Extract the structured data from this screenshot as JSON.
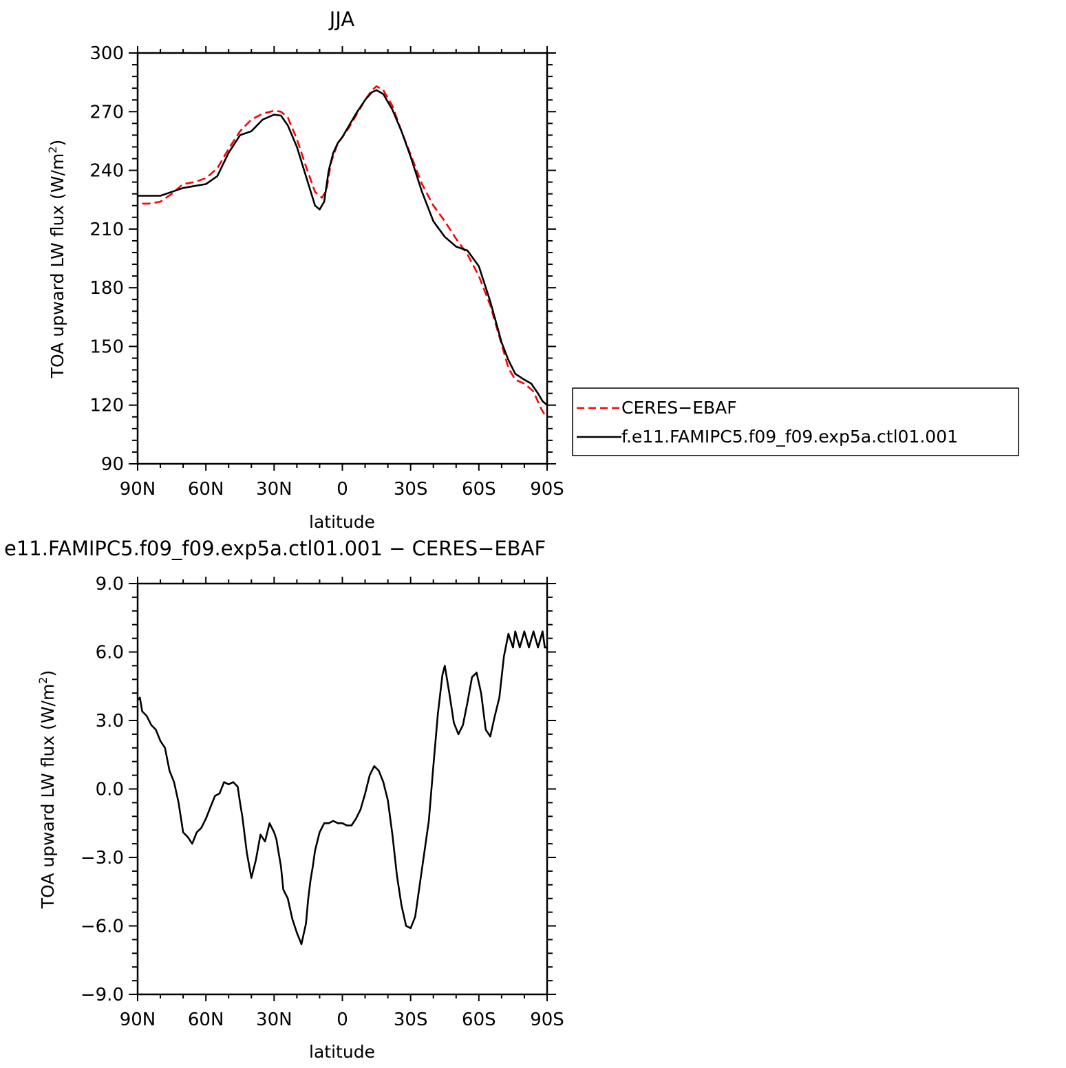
{
  "colors": {
    "ceres": "#ff0000",
    "model": "#000000"
  },
  "chart_data": [
    {
      "type": "line",
      "title": "JJA",
      "xlabel": "latitude",
      "ylabel": "TOA upward LW flux (W/m",
      "ylabel_sup": "2",
      "ylabel_close": ")",
      "xlim": [
        90,
        -90
      ],
      "ylim": [
        90,
        300
      ],
      "xticks": [
        90,
        60,
        30,
        0,
        -30,
        -60,
        -90
      ],
      "xtick_labels": [
        "90N",
        "60N",
        "30N",
        "0",
        "30S",
        "60S",
        "90S"
      ],
      "yticks": [
        90,
        120,
        150,
        180,
        210,
        240,
        270,
        300
      ],
      "ytick_labels": [
        "90",
        "120",
        "150",
        "180",
        "210",
        "240",
        "270",
        "300"
      ],
      "legend_position": "right",
      "series": [
        {
          "name": "CERES-EBAF",
          "style": "dashed",
          "color": "#ff0000",
          "x": [
            88,
            85,
            80,
            75,
            70,
            65,
            60,
            55,
            50,
            45,
            40,
            35,
            30,
            27,
            24,
            20,
            16,
            12,
            9,
            7,
            5,
            2,
            0,
            -3,
            -6,
            -10,
            -13,
            -15,
            -18,
            -22,
            -26,
            -30,
            -35,
            -40,
            -45,
            -50,
            -55,
            -60,
            -65,
            -70,
            -73,
            -76,
            -80,
            -84,
            -87,
            -89
          ],
          "y": [
            223,
            223,
            224,
            228,
            233,
            234,
            236,
            241,
            251,
            260,
            266,
            269,
            270.5,
            270,
            267,
            256,
            242,
            229,
            226,
            230,
            244,
            254,
            257,
            262,
            268,
            276,
            281,
            283,
            281,
            273,
            260,
            248,
            233,
            222,
            214,
            205,
            197,
            186,
            171,
            151,
            139,
            133,
            131,
            127,
            119,
            115
          ]
        },
        {
          "name": "f.e11.FAMIPC5.f09_f09.exp5a.ctl01.001",
          "style": "solid",
          "color": "#000000",
          "x": [
            90,
            88,
            85,
            80,
            75,
            70,
            65,
            60,
            55,
            50,
            45,
            40,
            35,
            30,
            27,
            24,
            20,
            16,
            12,
            10,
            8,
            6,
            4,
            2,
            0,
            -3,
            -6,
            -10,
            -13,
            -15,
            -18,
            -22,
            -26,
            -30,
            -35,
            -40,
            -45,
            -50,
            -55,
            -60,
            -65,
            -70,
            -73,
            -76,
            -80,
            -83,
            -86,
            -88,
            -90
          ],
          "y": [
            227,
            227,
            227,
            227,
            229,
            231,
            232,
            233,
            237,
            249,
            258,
            260,
            266,
            268.5,
            268,
            263,
            252,
            237,
            222,
            220,
            224,
            240,
            249,
            254,
            257,
            263,
            269,
            276,
            280,
            281,
            279,
            271,
            260,
            247,
            229,
            214,
            206,
            201,
            199,
            191,
            173,
            152,
            143,
            136,
            133,
            131,
            126,
            122,
            120
          ]
        }
      ]
    },
    {
      "type": "line",
      "title": "e11.FAMIPC5.f09_f09.exp5a.ctl01.001 − CERES−EBAF",
      "xlabel": "latitude",
      "ylabel": "TOA upward LW flux (W/m",
      "ylabel_sup": "2",
      "ylabel_close": ")",
      "xlim": [
        90,
        -90
      ],
      "ylim": [
        -9,
        9
      ],
      "xticks": [
        90,
        60,
        30,
        0,
        -30,
        -60,
        -90
      ],
      "xtick_labels": [
        "90N",
        "60N",
        "30N",
        "0",
        "30S",
        "60S",
        "90S"
      ],
      "yticks": [
        -9,
        -6,
        -3,
        0,
        3,
        6,
        9
      ],
      "ytick_labels": [
        "−9.0",
        "−6.0",
        "−3.0",
        "0.0",
        "3.0",
        "6.0",
        "9.0"
      ],
      "series": [
        {
          "color": "#000000",
          "style": "solid",
          "x": [
            90,
            89,
            88,
            86,
            84,
            82,
            80,
            78,
            76,
            74,
            72,
            70,
            68,
            66,
            64,
            62,
            60,
            58,
            56,
            54,
            52,
            50,
            48,
            46,
            45,
            44,
            43,
            42,
            40,
            38,
            36,
            34,
            32,
            30,
            29,
            28,
            27,
            26,
            24,
            22,
            20,
            18,
            16,
            15,
            14,
            13,
            12,
            10,
            8,
            6,
            4,
            2,
            0,
            -2,
            -4,
            -6,
            -8,
            -10,
            -12,
            -14,
            -16,
            -18,
            -20,
            -22,
            -24,
            -26,
            -28,
            -30,
            -32,
            -34,
            -36,
            -38,
            -40,
            -42,
            -44,
            -45,
            -47,
            -49,
            -51,
            -53,
            -55,
            -57,
            -59,
            -61,
            -63,
            -65,
            -67,
            -69,
            -71,
            -73,
            -75,
            -76,
            -78,
            -80,
            -82,
            -84,
            -86,
            -88,
            -89,
            -90
          ],
          "y": [
            3.9,
            4.0,
            3.4,
            3.2,
            2.8,
            2.6,
            2.1,
            1.8,
            0.8,
            0.3,
            -0.6,
            -1.9,
            -2.1,
            -2.4,
            -1.9,
            -1.7,
            -1.3,
            -0.8,
            -0.3,
            -0.2,
            0.3,
            0.2,
            0.3,
            0.1,
            -0.6,
            -1.2,
            -2.0,
            -2.8,
            -3.9,
            -3.1,
            -2.0,
            -2.3,
            -1.5,
            -1.9,
            -2.2,
            -2.8,
            -3.4,
            -4.4,
            -4.8,
            -5.7,
            -6.3,
            -6.8,
            -5.9,
            -4.8,
            -4.0,
            -3.4,
            -2.7,
            -1.9,
            -1.5,
            -1.5,
            -1.4,
            -1.5,
            -1.5,
            -1.6,
            -1.6,
            -1.3,
            -0.9,
            -0.2,
            0.6,
            1.0,
            0.8,
            0.3,
            -0.5,
            -2.0,
            -3.8,
            -5.1,
            -6.0,
            -6.1,
            -5.6,
            -4.2,
            -2.8,
            -1.4,
            1.0,
            3.3,
            5.0,
            5.4,
            4.2,
            2.9,
            2.4,
            2.8,
            3.8,
            4.9,
            5.1,
            4.2,
            2.6,
            2.3,
            3.2,
            4.0,
            5.8,
            6.8,
            6.2,
            6.9,
            6.2,
            6.9,
            6.2,
            6.9,
            6.2,
            6.9,
            6.2,
            6.2
          ]
        }
      ]
    }
  ],
  "legend": {
    "items": [
      {
        "label": "CERES−EBAF"
      },
      {
        "label": "f.e11.FAMIPC5.f09_f09.exp5a.ctl01.001"
      }
    ]
  }
}
